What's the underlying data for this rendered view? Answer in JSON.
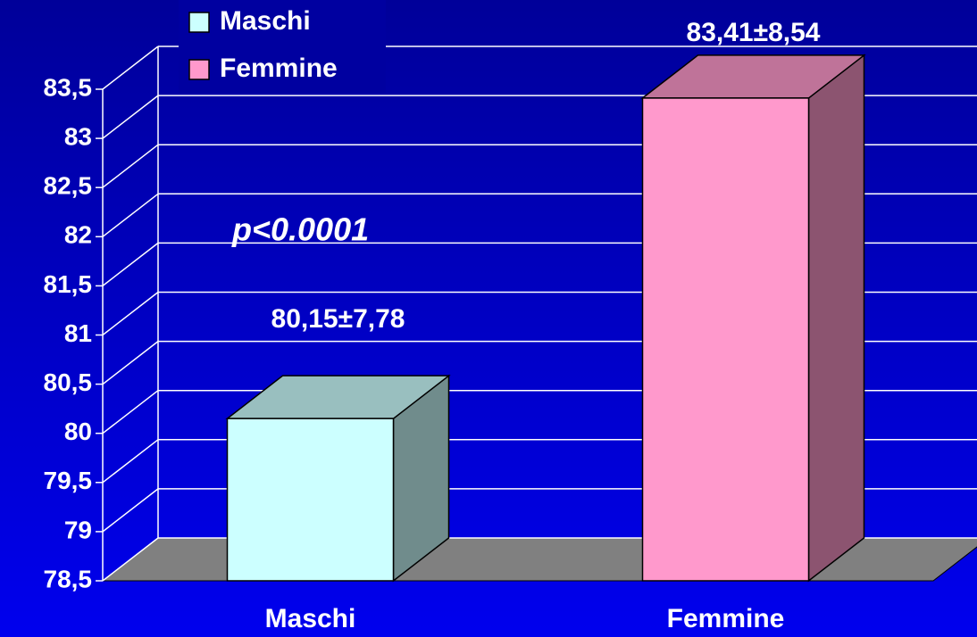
{
  "chart_data": {
    "type": "bar3d",
    "categories": [
      "Maschi",
      "Femmine"
    ],
    "series": [
      {
        "name": "Maschi",
        "color": "#ccffff",
        "values": [
          80.15,
          null
        ],
        "value_labels": [
          "80,15±7,78",
          null
        ]
      },
      {
        "name": "Femmine",
        "color": "#ff99cc",
        "values": [
          null,
          83.41
        ],
        "value_labels": [
          null,
          "83,41±8,54"
        ]
      }
    ],
    "ylim": [
      78.5,
      83.5
    ],
    "yticks": [
      {
        "value": 78.5,
        "label": "78,5"
      },
      79,
      {
        "value": 79.5,
        "label": "79,5"
      },
      80,
      {
        "value": 80.5,
        "label": "80,5"
      },
      81,
      {
        "value": 81.5,
        "label": "81,5"
      },
      82,
      {
        "value": 82.5,
        "label": "82,5"
      },
      83,
      {
        "value": 83.5,
        "label": "83,5"
      }
    ],
    "grid": true,
    "legend": "top-left",
    "annotations": [
      "p<0.0001"
    ]
  }
}
